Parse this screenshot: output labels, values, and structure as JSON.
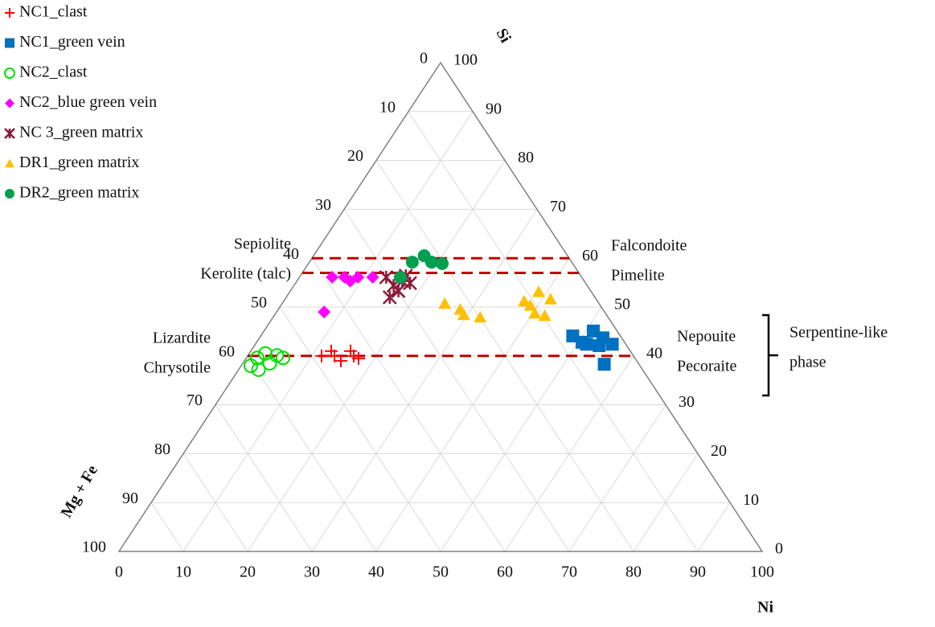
{
  "chart_data": {
    "type": "ternary",
    "axes": {
      "top": "Si",
      "left": "Mg + Fe",
      "right": "Ni"
    },
    "si_ticks": [
      0,
      10,
      20,
      30,
      40,
      50,
      60,
      70,
      80,
      90,
      100
    ],
    "mgfe_ticks": [
      0,
      10,
      20,
      30,
      40,
      50,
      60,
      70,
      80,
      90,
      100
    ],
    "ni_ticks": [
      0,
      10,
      20,
      30,
      40,
      50,
      60,
      70,
      80,
      90,
      100
    ],
    "grid": true,
    "legend": "top-left",
    "reference_lines": {
      "si": [
        60,
        57,
        40
      ],
      "color": "#c00000"
    },
    "annotations": {
      "sepiolite": [
        "Sepiolite",
        "Kerolite (talc)"
      ],
      "falcondoite": [
        "Falcondoite",
        "Pimelite"
      ],
      "lizardite": [
        "Lizardite",
        "Chrysotile"
      ],
      "nepouite": [
        "Nepouite",
        "Pecoraite"
      ],
      "serpentine": [
        "Serpentine-like",
        "phase"
      ]
    },
    "series": [
      {
        "name": "NC1_clast",
        "color": "#ff0000",
        "marker": "plus",
        "si": [
          40,
          41,
          40,
          39,
          41,
          40,
          39.5
        ],
        "ni": [
          11.5,
          12.5,
          13.5,
          15,
          15.5,
          16.5,
          17.5
        ]
      },
      {
        "name": "NC1_green vein",
        "color": "#0070c0",
        "marker": "square",
        "si": [
          44.1,
          42.8,
          45.1,
          43.7,
          42.4,
          38.3,
          42.4,
          42.1
        ],
        "ni": [
          48.5,
          50.6,
          51.2,
          53.4,
          55.5,
          56.3,
          51.5,
          53.6
        ]
      },
      {
        "name": "NC2_clast",
        "color": "#00e000",
        "marker": "circle-open",
        "si": [
          39.6,
          40.5,
          40.1,
          37.2,
          38.5,
          39.6,
          38
        ],
        "ni": [
          1.7,
          2.5,
          4.5,
          3.1,
          4.2,
          5.7,
          1.5
        ]
      },
      {
        "name": "NC2_blue green vein",
        "color": "#ff00ff",
        "marker": "diamond",
        "si": [
          56.1,
          56.1,
          56.1,
          56.1,
          55.3,
          49
        ],
        "ni": [
          5.1,
          7,
          9.1,
          11.4,
          8.3,
          7.4
        ]
      },
      {
        "name": "NC 3_green matrix",
        "color": "#8b1a3a",
        "marker": "star",
        "si": [
          56.1,
          54.4,
          55.3,
          54.9,
          52,
          53.3,
          56.4
        ],
        "ni": [
          13.5,
          15.5,
          16.4,
          17.8,
          16.1,
          16.8,
          16.4
        ]
      },
      {
        "name": "DR1_green matrix",
        "color": "#ffc000",
        "marker": "triangle",
        "si": [
          50.7,
          49.5,
          48.4,
          47.9,
          51.2,
          53.1,
          48.7,
          48.2,
          51.6,
          50.3
        ],
        "ni": [
          25.3,
          28.3,
          29.4,
          32.2,
          37.4,
          38.7,
          40.3,
          42.1,
          41.3,
          38.8
        ]
      },
      {
        "name": "DR2_green matrix",
        "color": "#00a050",
        "marker": "circle",
        "si": [
          56.1,
          59.2,
          60.5,
          59.2,
          58.9
        ],
        "ni": [
          15.7,
          16,
          17.2,
          19,
          20.8
        ]
      }
    ]
  }
}
